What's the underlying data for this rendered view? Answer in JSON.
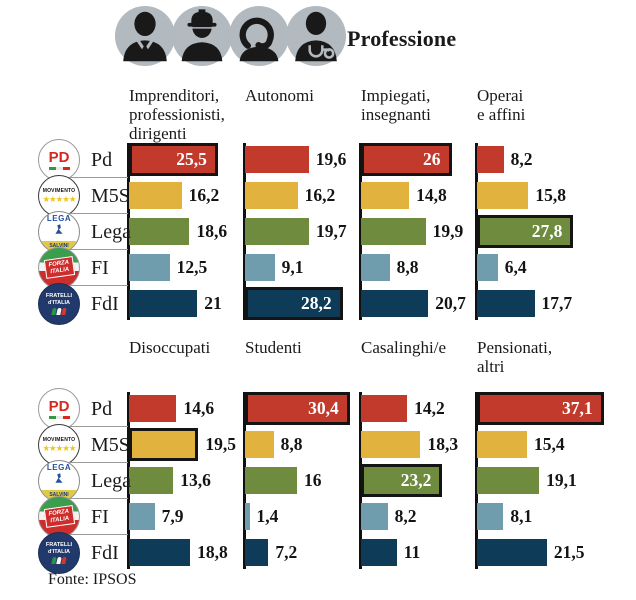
{
  "header": {
    "title": "Professione",
    "icons": [
      {
        "name": "businessman-icon"
      },
      {
        "name": "construction-worker-icon"
      },
      {
        "name": "call-operator-icon"
      },
      {
        "name": "doctor-icon"
      }
    ]
  },
  "parties": [
    {
      "code": "Pd",
      "color": "#c13a2b",
      "logo_lines": [
        "PD"
      ]
    },
    {
      "code": "M5S",
      "color": "#e1b33e",
      "logo_lines": [
        "MOVIMENTO",
        "★★★★★"
      ]
    },
    {
      "code": "Lega",
      "color": "#6e8b3e",
      "logo_lines": [
        "LEGA",
        "SALVINI"
      ]
    },
    {
      "code": "FI",
      "color": "#6f9dad",
      "logo_lines": [
        "FORZA",
        "ITALIA"
      ]
    },
    {
      "code": "FdI",
      "color": "#0e3c58",
      "logo_lines": [
        "FRATELLI",
        "d'ITALIA"
      ]
    }
  ],
  "chart_data": {
    "type": "bar",
    "orientation": "horizontal",
    "unit": "%",
    "categories": [
      "Pd",
      "M5S",
      "Lega",
      "FI",
      "FdI"
    ],
    "xlim": [
      0,
      40
    ],
    "highlight_style": "max value of each group gets a black outline",
    "groups": [
      {
        "label": "Imprenditori,\nprofessionisti,\ndirigenti",
        "values": [
          25.5,
          16.2,
          18.6,
          12.5,
          21
        ],
        "highlight": 0,
        "highlight_value_inside": true
      },
      {
        "label": "Autonomi",
        "values": [
          19.6,
          16.2,
          19.7,
          9.1,
          28.2
        ],
        "highlight": 4,
        "highlight_value_inside": true
      },
      {
        "label": "Impiegati,\ninsegnanti",
        "values": [
          26,
          14.8,
          19.9,
          8.8,
          20.7
        ],
        "highlight": 0,
        "highlight_value_inside": true
      },
      {
        "label": "Operai\ne affini",
        "values": [
          8.2,
          15.8,
          27.8,
          6.4,
          17.7
        ],
        "highlight": 2,
        "highlight_value_inside": true
      },
      {
        "label": "Disoccupati",
        "values": [
          14.6,
          19.5,
          13.6,
          7.9,
          18.8
        ],
        "highlight": 1,
        "highlight_value_inside": false
      },
      {
        "label": "Studenti",
        "values": [
          30.4,
          8.8,
          16,
          1.4,
          7.2
        ],
        "highlight": 0,
        "highlight_value_inside": true
      },
      {
        "label": "Casalinghi/e",
        "values": [
          14.2,
          18.3,
          23.2,
          8.2,
          11
        ],
        "highlight": 2,
        "highlight_value_inside": true
      },
      {
        "label": "Pensionati,\naltri",
        "values": [
          37.1,
          15.4,
          19.1,
          8.1,
          21.5
        ],
        "highlight": 0,
        "highlight_value_inside": true
      }
    ]
  },
  "footer": {
    "source": "Fonte: IPSOS"
  }
}
